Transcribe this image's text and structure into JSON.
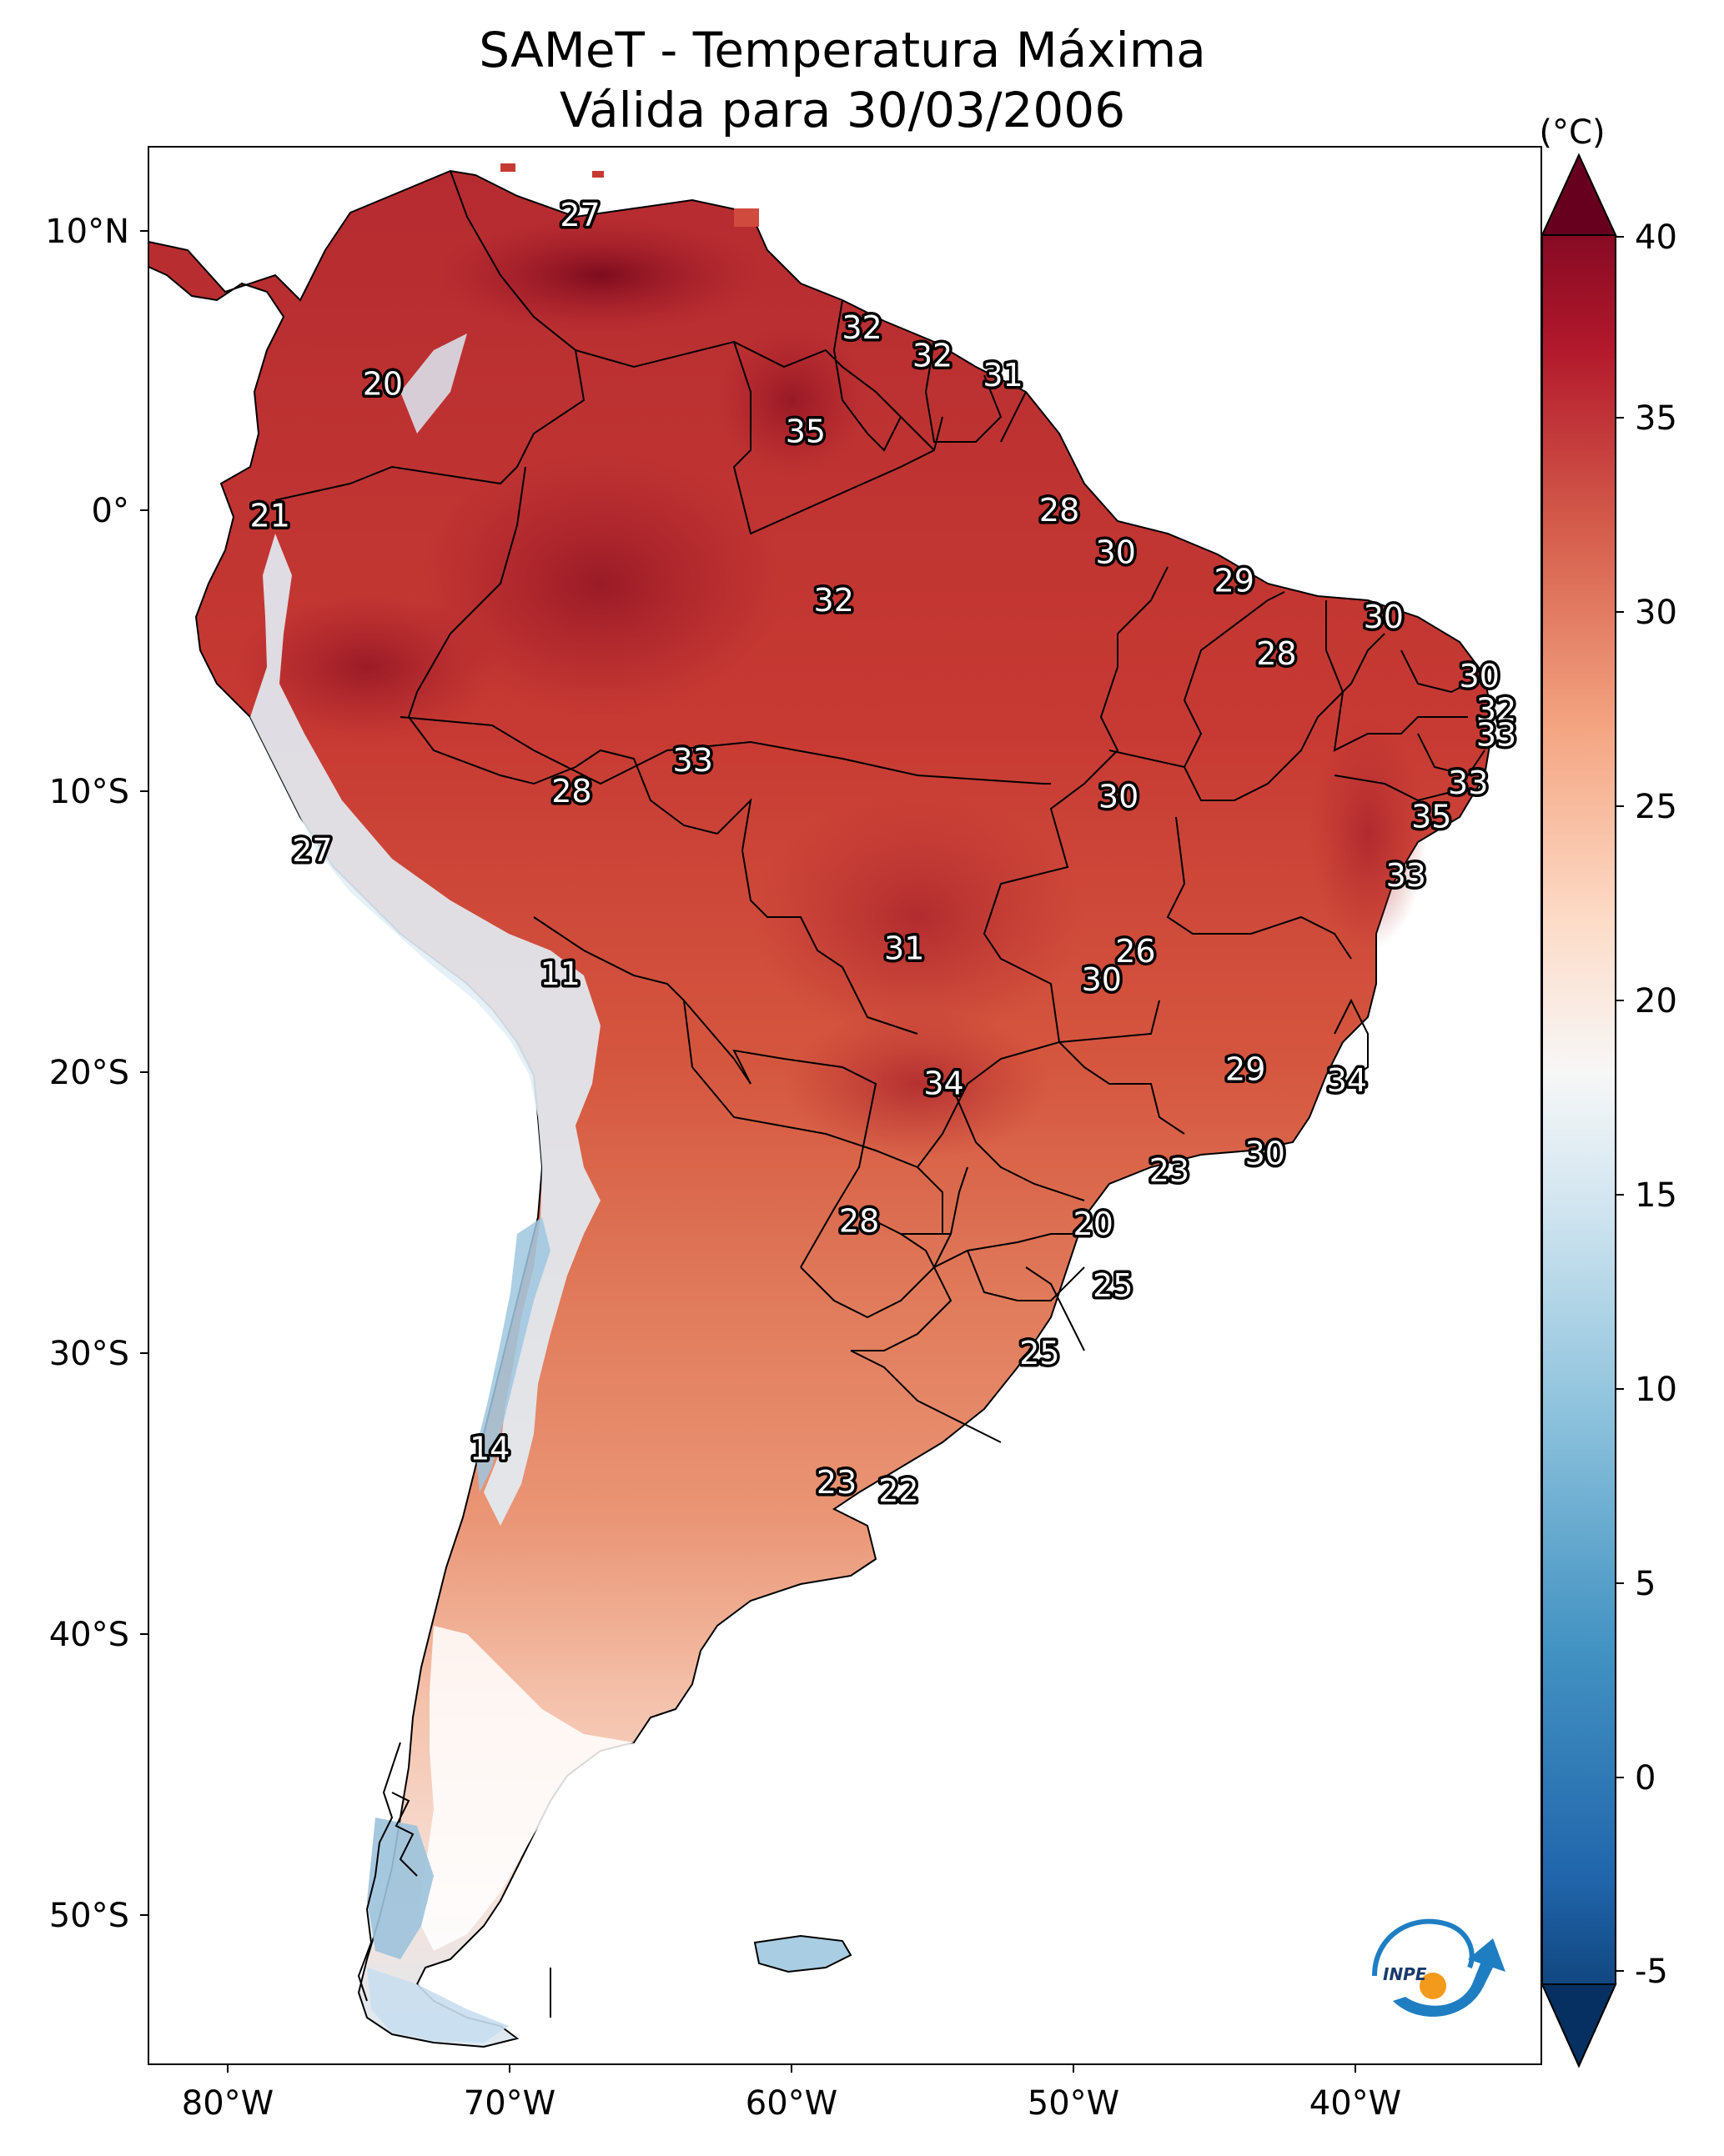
{
  "title": {
    "line1": "SAMeT - Temperatura Máxima",
    "line2": "Válida para 30/03/2006"
  },
  "axes": {
    "lon_ticks": [
      "80°W",
      "70°W",
      "60°W",
      "50°W",
      "40°W"
    ],
    "lat_ticks": [
      "10°N",
      "0°",
      "10°S",
      "20°S",
      "30°S",
      "40°S",
      "50°S"
    ]
  },
  "colorbar": {
    "unit": "(°C)",
    "ticks": [
      "40",
      "35",
      "30",
      "25",
      "20",
      "15",
      "10",
      "5",
      "0",
      "-5"
    ],
    "min": -7,
    "max": 40,
    "colormap": "RdBu_r"
  },
  "station_labels": [
    {
      "text": "27",
      "lon": -67.5,
      "lat": 10.5
    },
    {
      "text": "20",
      "lon": -74.5,
      "lat": 4.5
    },
    {
      "text": "32",
      "lon": -57.5,
      "lat": 6.5
    },
    {
      "text": "32",
      "lon": -55.0,
      "lat": 5.5
    },
    {
      "text": "31",
      "lon": -52.5,
      "lat": 4.8
    },
    {
      "text": "35",
      "lon": -59.5,
      "lat": 2.8
    },
    {
      "text": "21",
      "lon": -78.5,
      "lat": -0.2
    },
    {
      "text": "28",
      "lon": -50.5,
      "lat": 0.0
    },
    {
      "text": "30",
      "lon": -48.5,
      "lat": -1.5
    },
    {
      "text": "32",
      "lon": -58.5,
      "lat": -3.2
    },
    {
      "text": "29",
      "lon": -44.3,
      "lat": -2.5
    },
    {
      "text": "30",
      "lon": -39.0,
      "lat": -3.8
    },
    {
      "text": "28",
      "lon": -42.8,
      "lat": -5.1
    },
    {
      "text": "30",
      "lon": -35.6,
      "lat": -5.9
    },
    {
      "text": "32",
      "lon": -35.0,
      "lat": -7.1
    },
    {
      "text": "33",
      "lon": -35.0,
      "lat": -8.0
    },
    {
      "text": "33",
      "lon": -63.5,
      "lat": -8.9
    },
    {
      "text": "28",
      "lon": -67.8,
      "lat": -10.0
    },
    {
      "text": "30",
      "lon": -48.4,
      "lat": -10.2
    },
    {
      "text": "33",
      "lon": -36.0,
      "lat": -9.7
    },
    {
      "text": "35",
      "lon": -37.3,
      "lat": -10.9
    },
    {
      "text": "27",
      "lon": -77.0,
      "lat": -12.1
    },
    {
      "text": "33",
      "lon": -38.2,
      "lat": -13.0
    },
    {
      "text": "31",
      "lon": -56.0,
      "lat": -15.6
    },
    {
      "text": "26",
      "lon": -47.8,
      "lat": -15.7
    },
    {
      "text": "30",
      "lon": -49.0,
      "lat": -16.7
    },
    {
      "text": "11",
      "lon": -68.2,
      "lat": -16.5
    },
    {
      "text": "29",
      "lon": -43.9,
      "lat": -19.9
    },
    {
      "text": "34",
      "lon": -54.6,
      "lat": -20.4
    },
    {
      "text": "34",
      "lon": -40.3,
      "lat": -20.3
    },
    {
      "text": "30",
      "lon": -43.2,
      "lat": -22.9
    },
    {
      "text": "23",
      "lon": -46.6,
      "lat": -23.5
    },
    {
      "text": "28",
      "lon": -57.6,
      "lat": -25.3
    },
    {
      "text": "20",
      "lon": -49.3,
      "lat": -25.4
    },
    {
      "text": "25",
      "lon": -48.6,
      "lat": -27.6
    },
    {
      "text": "25",
      "lon": -51.2,
      "lat": -30.0
    },
    {
      "text": "14",
      "lon": -70.7,
      "lat": -33.4
    },
    {
      "text": "23",
      "lon": -58.4,
      "lat": -34.6
    },
    {
      "text": "22",
      "lon": -56.2,
      "lat": -34.9
    }
  ],
  "logo": {
    "text": "INPE"
  }
}
